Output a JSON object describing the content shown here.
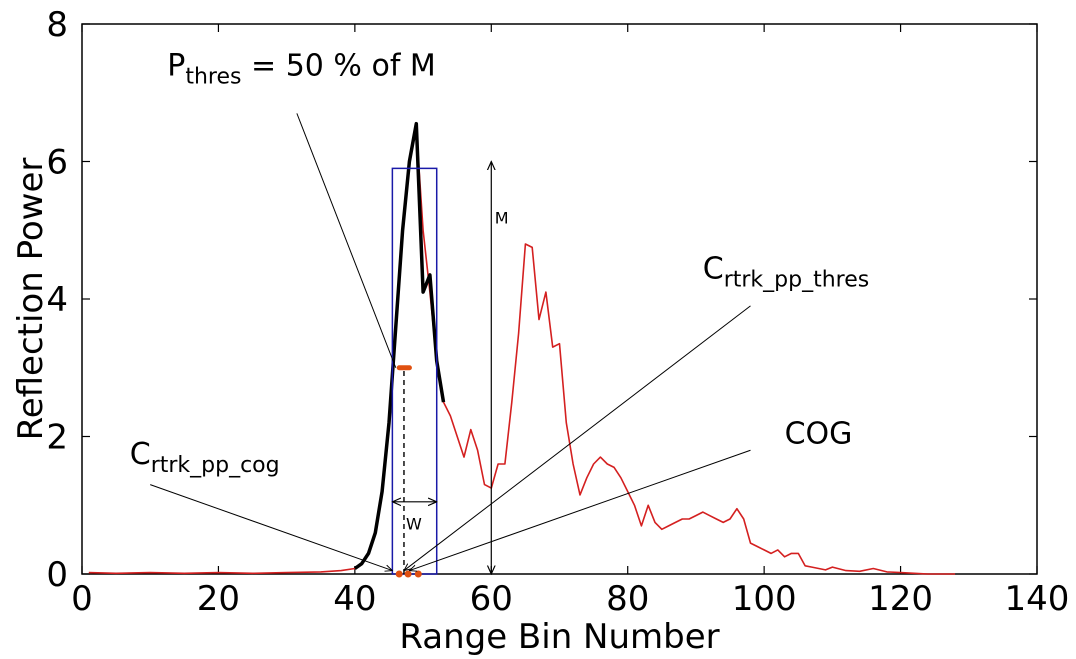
{
  "chart_data": {
    "type": "line",
    "xlabel": "Range Bin Number",
    "ylabel": "Reflection Power",
    "xlim": [
      0,
      140
    ],
    "ylim": [
      0,
      8
    ],
    "xticks": [
      "0",
      "20",
      "40",
      "60",
      "80",
      "100",
      "120",
      "140"
    ],
    "yticks": [
      "0",
      "2",
      "4",
      "6",
      "8"
    ],
    "grid": false,
    "series": [
      {
        "color": "#d42020",
        "x": [
          1,
          5,
          10,
          15,
          20,
          25,
          30,
          35,
          38,
          40,
          41,
          42,
          43,
          44,
          45,
          46,
          47,
          48,
          49,
          50,
          51,
          52,
          53,
          54,
          55,
          56,
          57,
          58,
          59,
          60,
          61,
          62,
          63,
          64,
          65,
          66,
          67,
          68,
          69,
          70,
          71,
          72,
          73,
          74,
          75,
          76,
          77,
          78,
          79,
          80,
          81,
          82,
          83,
          84,
          85,
          86,
          87,
          88,
          89,
          90,
          91,
          92,
          93,
          94,
          95,
          96,
          97,
          98,
          99,
          100,
          101,
          102,
          103,
          104,
          105,
          106,
          107,
          108,
          109,
          110,
          112,
          114,
          116,
          118,
          120,
          122,
          124,
          126,
          128
        ],
        "y": [
          0.02,
          0.01,
          0.02,
          0.01,
          0.02,
          0.01,
          0.02,
          0.03,
          0.05,
          0.08,
          0.15,
          0.3,
          0.6,
          1.2,
          2.2,
          3.6,
          5.0,
          6.0,
          6.5,
          5.0,
          4.1,
          3.1,
          2.5,
          2.3,
          2.0,
          1.7,
          2.1,
          1.8,
          1.3,
          1.25,
          1.6,
          1.6,
          2.5,
          3.5,
          4.8,
          4.75,
          3.7,
          4.1,
          3.3,
          3.35,
          2.2,
          1.6,
          1.15,
          1.4,
          1.6,
          1.7,
          1.6,
          1.55,
          1.4,
          1.2,
          1.0,
          0.7,
          1.0,
          0.75,
          0.65,
          0.7,
          0.75,
          0.8,
          0.8,
          0.85,
          0.9,
          0.85,
          0.8,
          0.75,
          0.8,
          0.95,
          0.8,
          0.45,
          0.4,
          0.35,
          0.3,
          0.35,
          0.25,
          0.3,
          0.3,
          0.12,
          0.1,
          0.08,
          0.06,
          0.1,
          0.05,
          0.04,
          0.08,
          0.03,
          0.02,
          0.01,
          0.0,
          0.0,
          0.0
        ]
      },
      {
        "color": "#000000",
        "x": [
          40,
          41,
          42,
          43,
          44,
          45,
          46,
          47,
          48,
          49,
          50,
          51,
          52,
          53
        ],
        "y": [
          0.08,
          0.15,
          0.3,
          0.6,
          1.2,
          2.2,
          3.6,
          5.0,
          6.0,
          6.55,
          4.1,
          4.35,
          3.1,
          2.5
        ]
      }
    ],
    "window_box": {
      "x0": 45.5,
      "x1": 52,
      "y0": 0,
      "y1": 5.9,
      "color": "#1a1aa8"
    },
    "threshold_marker": {
      "x0": 46.5,
      "x1": 48,
      "y": 3.0,
      "color": "#e05010"
    },
    "centroid_markers": {
      "x": [
        46.5,
        47.8,
        49.3
      ],
      "y": 0.0,
      "color": "#e05010"
    },
    "dashed_line": {
      "x": 47.2,
      "y0": 0,
      "y1": 3.0
    },
    "m_arrow": {
      "x": 60,
      "y0": 0,
      "y1": 6.0
    },
    "w_arrow": {
      "x0": 45.5,
      "x1": 52,
      "y": 1.05
    },
    "annotations": {
      "p_thres": {
        "text_main": "P",
        "text_sub": "thres",
        "text_rest": " = 50 % of M",
        "x": 12.5,
        "y": 7.25,
        "point_x": 46,
        "point_y": 3.0
      },
      "m_label": {
        "text": "M",
        "x": 60.5,
        "y": 5.1
      },
      "w_label": {
        "text": "W",
        "x": 47.5,
        "y": 0.65
      },
      "c_thres": {
        "text_main": "C",
        "text_sub": "rtrk_pp_thres",
        "text_x": 91,
        "text_y": 4.3,
        "line_from_x": 98,
        "line_from_y": 3.9,
        "point_x": 47.2,
        "point_y": 0.05
      },
      "cog": {
        "text": "COG",
        "text_x": 103,
        "text_y": 1.9,
        "line_from_x": 98,
        "line_from_y": 1.8,
        "point_x": 48,
        "point_y": 0.05
      },
      "c_cog": {
        "text_main": "C",
        "text_sub": "rtrk_pp_cog",
        "text_x": 7,
        "text_y": 1.6,
        "line_from_x": 10,
        "line_from_y": 1.3,
        "point_x": 45.5,
        "point_y": 0.05
      }
    }
  }
}
